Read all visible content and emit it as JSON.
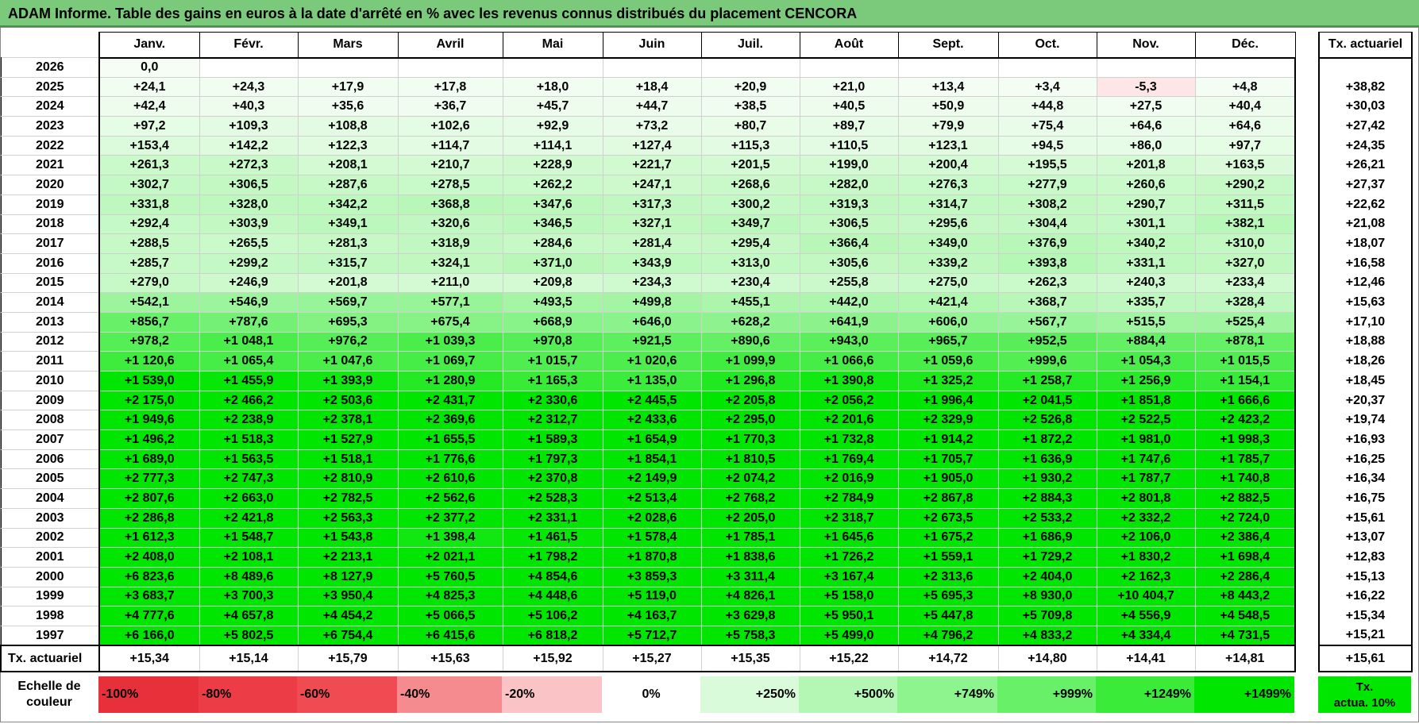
{
  "title": "ADAM Informe. Table des gains en euros à la date d'arrêté en % avec les revenus connus distribués du placement CENCORA",
  "months": [
    "Janv.",
    "Févr.",
    "Mars",
    "Avril",
    "Mai",
    "Juin",
    "Juil.",
    "Août",
    "Sept.",
    "Oct.",
    "Nov.",
    "Déc."
  ],
  "tx_header": "Tx. actuariel",
  "rows": [
    {
      "year": "2026",
      "values": [
        "0,0",
        "",
        "",
        "",
        "",
        "",
        "",
        "",
        "",
        "",
        "",
        ""
      ],
      "tx": ""
    },
    {
      "year": "2025",
      "values": [
        "+24,1",
        "+24,3",
        "+17,9",
        "+17,8",
        "+18,0",
        "+18,4",
        "+20,9",
        "+21,0",
        "+13,4",
        "+3,4",
        "-5,3",
        "+4,8"
      ],
      "tx": "+38,82"
    },
    {
      "year": "2024",
      "values": [
        "+42,4",
        "+40,3",
        "+35,6",
        "+36,7",
        "+45,7",
        "+44,7",
        "+38,5",
        "+40,5",
        "+50,9",
        "+44,8",
        "+27,5",
        "+40,4"
      ],
      "tx": "+30,03"
    },
    {
      "year": "2023",
      "values": [
        "+97,2",
        "+109,3",
        "+108,8",
        "+102,6",
        "+92,9",
        "+73,2",
        "+80,7",
        "+89,7",
        "+79,9",
        "+75,4",
        "+64,6",
        "+64,6"
      ],
      "tx": "+27,42"
    },
    {
      "year": "2022",
      "values": [
        "+153,4",
        "+142,2",
        "+122,3",
        "+114,7",
        "+114,1",
        "+127,4",
        "+115,3",
        "+110,5",
        "+123,1",
        "+94,5",
        "+86,0",
        "+97,7"
      ],
      "tx": "+24,35"
    },
    {
      "year": "2021",
      "values": [
        "+261,3",
        "+272,3",
        "+208,1",
        "+210,7",
        "+228,9",
        "+221,7",
        "+201,5",
        "+199,0",
        "+200,4",
        "+195,5",
        "+201,8",
        "+163,5"
      ],
      "tx": "+26,21"
    },
    {
      "year": "2020",
      "values": [
        "+302,7",
        "+306,5",
        "+287,6",
        "+278,5",
        "+262,2",
        "+247,1",
        "+268,6",
        "+282,0",
        "+276,3",
        "+277,9",
        "+260,6",
        "+290,2"
      ],
      "tx": "+27,37"
    },
    {
      "year": "2019",
      "values": [
        "+331,8",
        "+328,0",
        "+342,2",
        "+368,8",
        "+347,6",
        "+317,3",
        "+300,2",
        "+319,3",
        "+314,7",
        "+308,2",
        "+290,7",
        "+311,5"
      ],
      "tx": "+22,62"
    },
    {
      "year": "2018",
      "values": [
        "+292,4",
        "+303,9",
        "+349,1",
        "+320,6",
        "+346,5",
        "+327,1",
        "+349,7",
        "+306,5",
        "+295,6",
        "+304,4",
        "+301,1",
        "+382,1"
      ],
      "tx": "+21,08"
    },
    {
      "year": "2017",
      "values": [
        "+288,5",
        "+265,5",
        "+281,3",
        "+318,9",
        "+284,6",
        "+281,4",
        "+295,4",
        "+366,4",
        "+349,0",
        "+376,9",
        "+340,2",
        "+310,0"
      ],
      "tx": "+18,07"
    },
    {
      "year": "2016",
      "values": [
        "+285,7",
        "+299,2",
        "+315,7",
        "+324,1",
        "+371,0",
        "+343,9",
        "+313,0",
        "+305,6",
        "+339,2",
        "+393,8",
        "+331,1",
        "+327,0"
      ],
      "tx": "+16,58"
    },
    {
      "year": "2015",
      "values": [
        "+279,0",
        "+246,9",
        "+201,8",
        "+211,0",
        "+209,8",
        "+234,3",
        "+230,4",
        "+255,8",
        "+275,0",
        "+262,3",
        "+240,3",
        "+233,4"
      ],
      "tx": "+12,46"
    },
    {
      "year": "2014",
      "values": [
        "+542,1",
        "+546,9",
        "+569,7",
        "+577,1",
        "+493,5",
        "+499,8",
        "+455,1",
        "+442,0",
        "+421,4",
        "+368,7",
        "+335,7",
        "+328,4"
      ],
      "tx": "+15,63"
    },
    {
      "year": "2013",
      "values": [
        "+856,7",
        "+787,6",
        "+695,3",
        "+675,4",
        "+668,9",
        "+646,0",
        "+628,2",
        "+641,9",
        "+606,0",
        "+567,7",
        "+515,5",
        "+525,4"
      ],
      "tx": "+17,10"
    },
    {
      "year": "2012",
      "values": [
        "+978,2",
        "+1 048,1",
        "+976,2",
        "+1 039,3",
        "+970,8",
        "+921,5",
        "+890,6",
        "+943,0",
        "+965,7",
        "+952,5",
        "+884,4",
        "+878,1"
      ],
      "tx": "+18,88"
    },
    {
      "year": "2011",
      "values": [
        "+1 120,6",
        "+1 065,4",
        "+1 047,6",
        "+1 069,7",
        "+1 015,7",
        "+1 020,6",
        "+1 099,9",
        "+1 066,6",
        "+1 059,6",
        "+999,6",
        "+1 054,3",
        "+1 015,5"
      ],
      "tx": "+18,26"
    },
    {
      "year": "2010",
      "values": [
        "+1 539,0",
        "+1 455,9",
        "+1 393,9",
        "+1 280,9",
        "+1 165,3",
        "+1 135,0",
        "+1 296,8",
        "+1 390,8",
        "+1 325,2",
        "+1 258,7",
        "+1 256,9",
        "+1 154,1"
      ],
      "tx": "+18,45"
    },
    {
      "year": "2009",
      "values": [
        "+2 175,0",
        "+2 466,2",
        "+2 503,6",
        "+2 431,7",
        "+2 330,6",
        "+2 445,5",
        "+2 205,8",
        "+2 056,2",
        "+1 996,4",
        "+2 041,5",
        "+1 851,8",
        "+1 666,6"
      ],
      "tx": "+20,37"
    },
    {
      "year": "2008",
      "values": [
        "+1 949,6",
        "+2 238,9",
        "+2 378,1",
        "+2 369,6",
        "+2 312,7",
        "+2 433,6",
        "+2 295,0",
        "+2 201,6",
        "+2 329,9",
        "+2 526,8",
        "+2 522,5",
        "+2 423,2"
      ],
      "tx": "+19,74"
    },
    {
      "year": "2007",
      "values": [
        "+1 496,2",
        "+1 518,3",
        "+1 527,9",
        "+1 655,5",
        "+1 589,3",
        "+1 654,9",
        "+1 770,3",
        "+1 732,8",
        "+1 914,2",
        "+1 872,2",
        "+1 981,0",
        "+1 998,3"
      ],
      "tx": "+16,93"
    },
    {
      "year": "2006",
      "values": [
        "+1 689,0",
        "+1 563,5",
        "+1 518,1",
        "+1 776,6",
        "+1 797,3",
        "+1 854,1",
        "+1 810,5",
        "+1 769,4",
        "+1 705,7",
        "+1 636,9",
        "+1 747,6",
        "+1 785,7"
      ],
      "tx": "+16,25"
    },
    {
      "year": "2005",
      "values": [
        "+2 777,3",
        "+2 747,3",
        "+2 810,9",
        "+2 610,6",
        "+2 370,8",
        "+2 149,9",
        "+2 074,2",
        "+2 016,9",
        "+1 905,0",
        "+1 930,2",
        "+1 787,7",
        "+1 740,8"
      ],
      "tx": "+16,34"
    },
    {
      "year": "2004",
      "values": [
        "+2 807,6",
        "+2 663,0",
        "+2 782,5",
        "+2 562,6",
        "+2 528,3",
        "+2 513,4",
        "+2 768,2",
        "+2 784,9",
        "+2 867,8",
        "+2 884,3",
        "+2 801,8",
        "+2 882,5"
      ],
      "tx": "+16,75"
    },
    {
      "year": "2003",
      "values": [
        "+2 286,8",
        "+2 421,8",
        "+2 563,3",
        "+2 377,2",
        "+2 331,1",
        "+2 028,6",
        "+2 205,0",
        "+2 318,7",
        "+2 673,5",
        "+2 533,2",
        "+2 332,2",
        "+2 724,0"
      ],
      "tx": "+15,61"
    },
    {
      "year": "2002",
      "values": [
        "+1 612,3",
        "+1 548,7",
        "+1 543,8",
        "+1 398,4",
        "+1 461,5",
        "+1 578,4",
        "+1 785,1",
        "+1 645,6",
        "+1 675,2",
        "+1 686,9",
        "+2 106,0",
        "+2 386,4"
      ],
      "tx": "+13,07"
    },
    {
      "year": "2001",
      "values": [
        "+2 408,0",
        "+2 108,1",
        "+2 213,1",
        "+2 021,1",
        "+1 798,2",
        "+1 870,8",
        "+1 838,6",
        "+1 726,2",
        "+1 559,1",
        "+1 729,2",
        "+1 830,2",
        "+1 698,4"
      ],
      "tx": "+12,83"
    },
    {
      "year": "2000",
      "values": [
        "+6 823,6",
        "+8 489,6",
        "+8 127,9",
        "+5 760,5",
        "+4 854,6",
        "+3 859,3",
        "+3 311,4",
        "+3 167,4",
        "+2 313,6",
        "+2 404,0",
        "+2 162,3",
        "+2 286,4"
      ],
      "tx": "+15,13"
    },
    {
      "year": "1999",
      "values": [
        "+3 683,7",
        "+3 700,3",
        "+3 950,4",
        "+4 825,3",
        "+4 448,6",
        "+5 119,0",
        "+4 826,1",
        "+5 158,0",
        "+5 695,3",
        "+8 930,0",
        "+10 404,7",
        "+8 443,2"
      ],
      "tx": "+16,22"
    },
    {
      "year": "1998",
      "values": [
        "+4 777,6",
        "+4 657,8",
        "+4 454,2",
        "+5 066,5",
        "+5 106,2",
        "+4 163,7",
        "+3 629,8",
        "+5 950,1",
        "+5 447,8",
        "+5 709,8",
        "+4 556,9",
        "+4 548,5"
      ],
      "tx": "+15,34"
    },
    {
      "year": "1997",
      "values": [
        "+6 166,0",
        "+5 802,5",
        "+6 754,4",
        "+6 415,6",
        "+6 818,2",
        "+5 712,7",
        "+5 758,3",
        "+5 499,0",
        "+4 796,2",
        "+4 833,2",
        "+4 334,4",
        "+4 731,5"
      ],
      "tx": "+15,21"
    }
  ],
  "avg_row": {
    "label": "Tx. actuariel",
    "values": [
      "+15,34",
      "+15,14",
      "+15,79",
      "+15,63",
      "+15,92",
      "+15,27",
      "+15,35",
      "+15,22",
      "+14,72",
      "+14,80",
      "+14,41",
      "+14,81"
    ],
    "tx": "+15,61"
  },
  "scale": {
    "label": "Echelle de couleur",
    "items": [
      {
        "text": "-100%",
        "color": "#e8303a",
        "align": "left"
      },
      {
        "text": "-80%",
        "color": "#ec3c45",
        "align": "left"
      },
      {
        "text": "-60%",
        "color": "#f04a52",
        "align": "left"
      },
      {
        "text": "-40%",
        "color": "#f58a8f",
        "align": "left"
      },
      {
        "text": "-20%",
        "color": "#fac3c5",
        "align": "left"
      },
      {
        "text": "0%",
        "color": "#ffffff",
        "align": "center"
      },
      {
        "text": "+250%",
        "color": "#d9fbd9",
        "align": "right"
      },
      {
        "text": "+500%",
        "color": "#b4f7b4",
        "align": "right"
      },
      {
        "text": "+749%",
        "color": "#8ef48e",
        "align": "right"
      },
      {
        "text": "+999%",
        "color": "#69f069",
        "align": "right"
      },
      {
        "text": "+1249%",
        "color": "#3aeb3a",
        "align": "right"
      },
      {
        "text": "+1499%",
        "color": "#00e600",
        "align": "right"
      }
    ],
    "tx_label": "Tx. actua. 10%",
    "tx_color": "#00e600"
  }
}
